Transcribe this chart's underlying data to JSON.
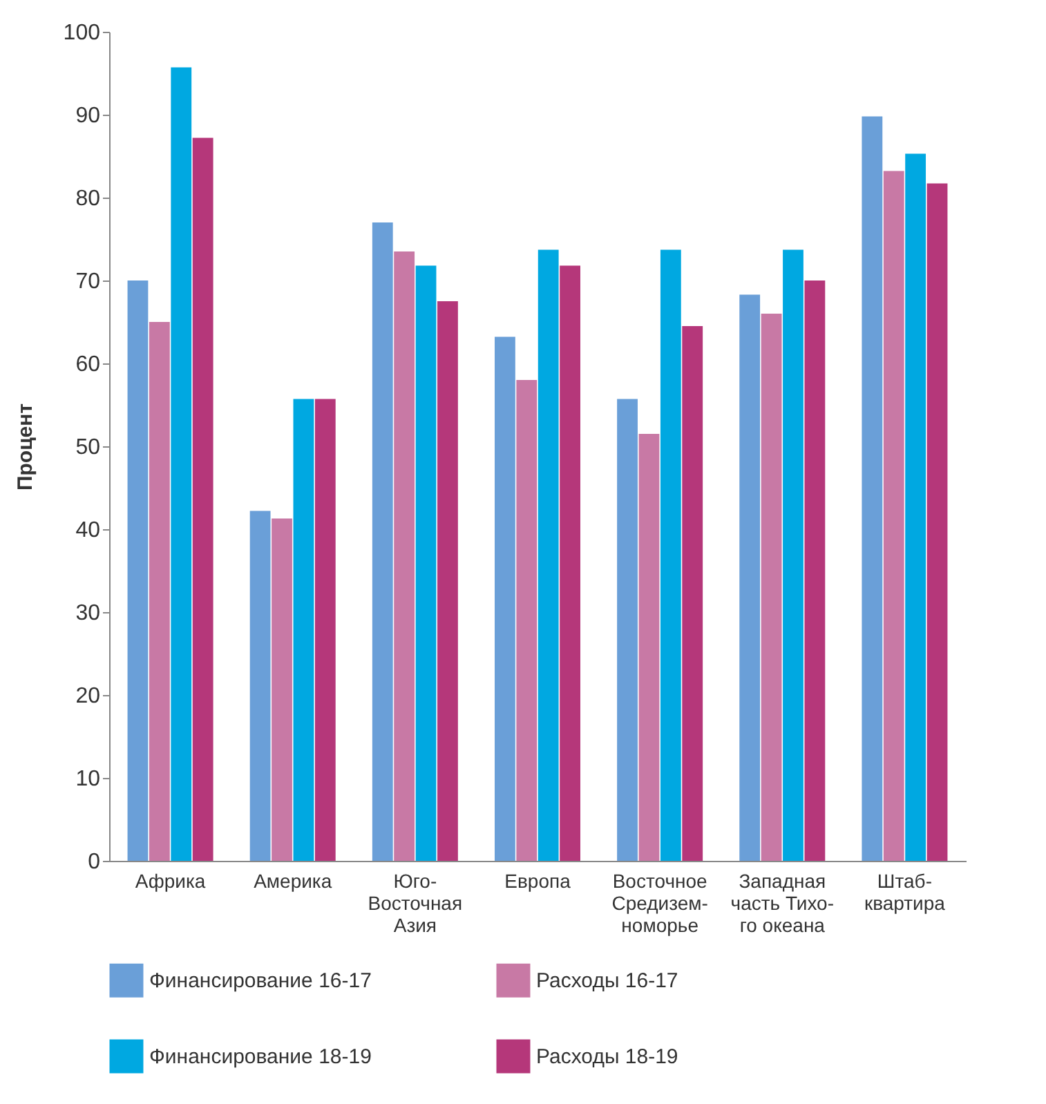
{
  "chart_data": {
    "type": "bar",
    "ylabel": "Процент",
    "categories": [
      "Африка",
      "Америка",
      "Юго-\nВосточная\nАзия",
      "Европа",
      "Восточное\nСредизем-\nноморье",
      "Западная\nчасть Тихо-\nго океана",
      "Штаб-\nквартира"
    ],
    "series": [
      {
        "name": "Финансирование 16-17",
        "color": "#6a9fd8",
        "values": [
          70,
          42.2,
          77,
          63.2,
          55.7,
          68.3,
          89.8
        ]
      },
      {
        "name": "Расходы 16-17",
        "color": "#c879a5",
        "values": [
          65,
          41.3,
          73.5,
          58,
          51.5,
          66,
          83.2
        ]
      },
      {
        "name": "Финансирование 18-19",
        "color": "#00a8e1",
        "values": [
          95.7,
          55.7,
          71.8,
          73.7,
          73.7,
          73.7,
          85.3
        ]
      },
      {
        "name": "Расходы 18-19",
        "color": "#b5377a",
        "values": [
          87.2,
          55.7,
          67.5,
          71.8,
          64.5,
          70,
          81.7
        ]
      }
    ],
    "ylim": [
      0,
      100
    ],
    "yticks": [
      0,
      10,
      20,
      30,
      40,
      50,
      60,
      70,
      80,
      90,
      100
    ],
    "grid": false,
    "legend": "bottom"
  }
}
